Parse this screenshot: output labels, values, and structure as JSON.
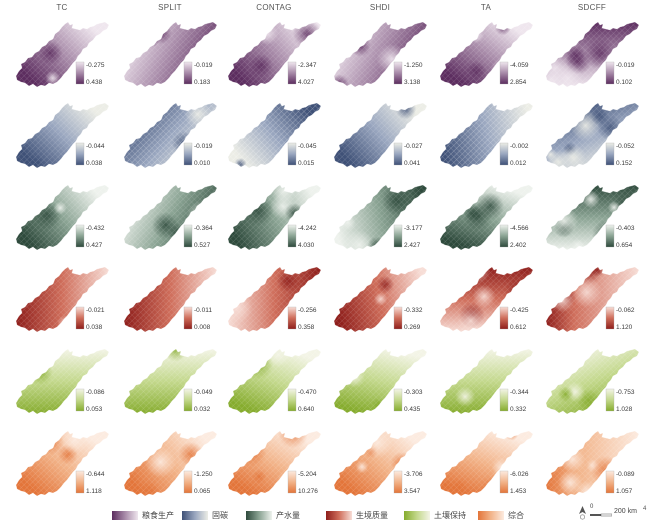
{
  "columns": [
    "TC",
    "SPLIT",
    "CONTAG",
    "SHDI",
    "TA",
    "SDCFF"
  ],
  "rows": [
    {
      "service": "粮食生产",
      "colors": [
        "#5c2d5f",
        "#a78aa8",
        "#efe6ee"
      ],
      "cells": [
        {
          "upper": "-0.275",
          "lower": "0.438"
        },
        {
          "upper": "-0.019",
          "lower": "0.183"
        },
        {
          "upper": "-2.347",
          "lower": "4.027"
        },
        {
          "upper": "-1.250",
          "lower": "3.138"
        },
        {
          "upper": "-4.059",
          "lower": "2.854"
        },
        {
          "upper": "-0.019",
          "lower": "0.102"
        }
      ]
    },
    {
      "service": "固碳",
      "colors": [
        "#3f5177",
        "#99a6bf",
        "#ecede6"
      ],
      "cells": [
        {
          "upper": "-0.044",
          "lower": "0.038"
        },
        {
          "upper": "-0.019",
          "lower": "0.010"
        },
        {
          "upper": "-0.045",
          "lower": "0.015"
        },
        {
          "upper": "-0.027",
          "lower": "0.041"
        },
        {
          "upper": "-0.002",
          "lower": "0.012"
        },
        {
          "upper": "-0.052",
          "lower": "0.152"
        }
      ]
    },
    {
      "service": "产水量",
      "colors": [
        "#2e4a3c",
        "#8aa393",
        "#eef2ed"
      ],
      "cells": [
        {
          "upper": "-0.432",
          "lower": "0.427"
        },
        {
          "upper": "-0.364",
          "lower": "0.527"
        },
        {
          "upper": "-4.242",
          "lower": "4.030"
        },
        {
          "upper": "-3.177",
          "lower": "2.427"
        },
        {
          "upper": "-4.566",
          "lower": "2.402"
        },
        {
          "upper": "-0.403",
          "lower": "0.654"
        }
      ]
    },
    {
      "service": "生境质量",
      "colors": [
        "#8e1e1b",
        "#cf6e5b",
        "#f7ddd6"
      ],
      "cells": [
        {
          "upper": "-0.021",
          "lower": "0.038"
        },
        {
          "upper": "-0.011",
          "lower": "0.008"
        },
        {
          "upper": "-0.256",
          "lower": "0.358"
        },
        {
          "upper": "-0.332",
          "lower": "0.269"
        },
        {
          "upper": "-0.425",
          "lower": "0.612"
        },
        {
          "upper": "-0.062",
          "lower": "1.120"
        }
      ]
    },
    {
      "service": "土壤保持",
      "colors": [
        "#86ac2e",
        "#c3d88c",
        "#f3f4e6"
      ],
      "cells": [
        {
          "upper": "-0.086",
          "lower": "0.053"
        },
        {
          "upper": "-0.049",
          "lower": "0.032"
        },
        {
          "upper": "-0.470",
          "lower": "0.640"
        },
        {
          "upper": "-0.303",
          "lower": "0.435"
        },
        {
          "upper": "-0.344",
          "lower": "0.332"
        },
        {
          "upper": "-0.753",
          "lower": "1.028"
        }
      ]
    },
    {
      "service": "综合",
      "colors": [
        "#e3753a",
        "#f2b48a",
        "#fcebe0"
      ],
      "cells": [
        {
          "upper": "-0.644",
          "lower": "1.118"
        },
        {
          "upper": "-1.250",
          "lower": "0.065"
        },
        {
          "upper": "-5.204",
          "lower": "10.276"
        },
        {
          "upper": "-3.706",
          "lower": "3.547"
        },
        {
          "upper": "-6.026",
          "lower": "1.453"
        },
        {
          "upper": "-0.089",
          "lower": "1.057"
        }
      ]
    }
  ],
  "scale_bar": {
    "start": "0",
    "end": "200 km"
  },
  "icons": {
    "north_arrow": "north-arrow-icon"
  },
  "corner_mark": "4"
}
